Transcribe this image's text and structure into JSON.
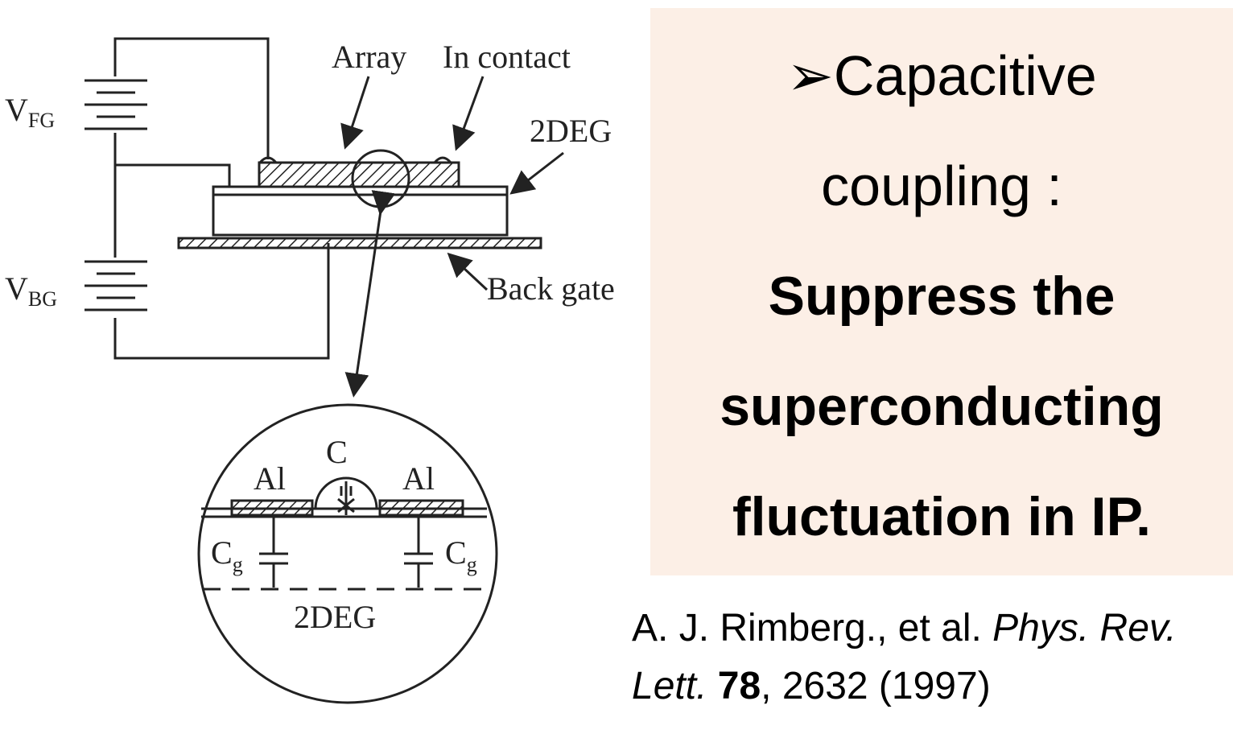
{
  "diagram": {
    "labels": {
      "vfg": {
        "main": "V",
        "sub": "FG"
      },
      "vbg": {
        "main": "V",
        "sub": "BG"
      },
      "array": "Array",
      "in_contact": "In contact",
      "twodeg_top": "2DEG",
      "back_gate": "Back gate",
      "c": "C",
      "al_left": "Al",
      "al_right": "Al",
      "cg_left": {
        "main": "C",
        "sub": "g"
      },
      "cg_right": {
        "main": "C",
        "sub": "g"
      },
      "twodeg_bottom": "2DEG"
    }
  },
  "panel": {
    "bullet": "➢",
    "lines": [
      "Capacitive",
      "coupling :"
    ],
    "bold_lines": [
      "Suppress the",
      "superconducting",
      "fluctuation in IP."
    ]
  },
  "citation": {
    "authors": "A. J. Rimberg., et al.",
    "journal": "Phys. Rev. Lett.",
    "volume": "78",
    "pages": ", 2632 (1997)"
  }
}
